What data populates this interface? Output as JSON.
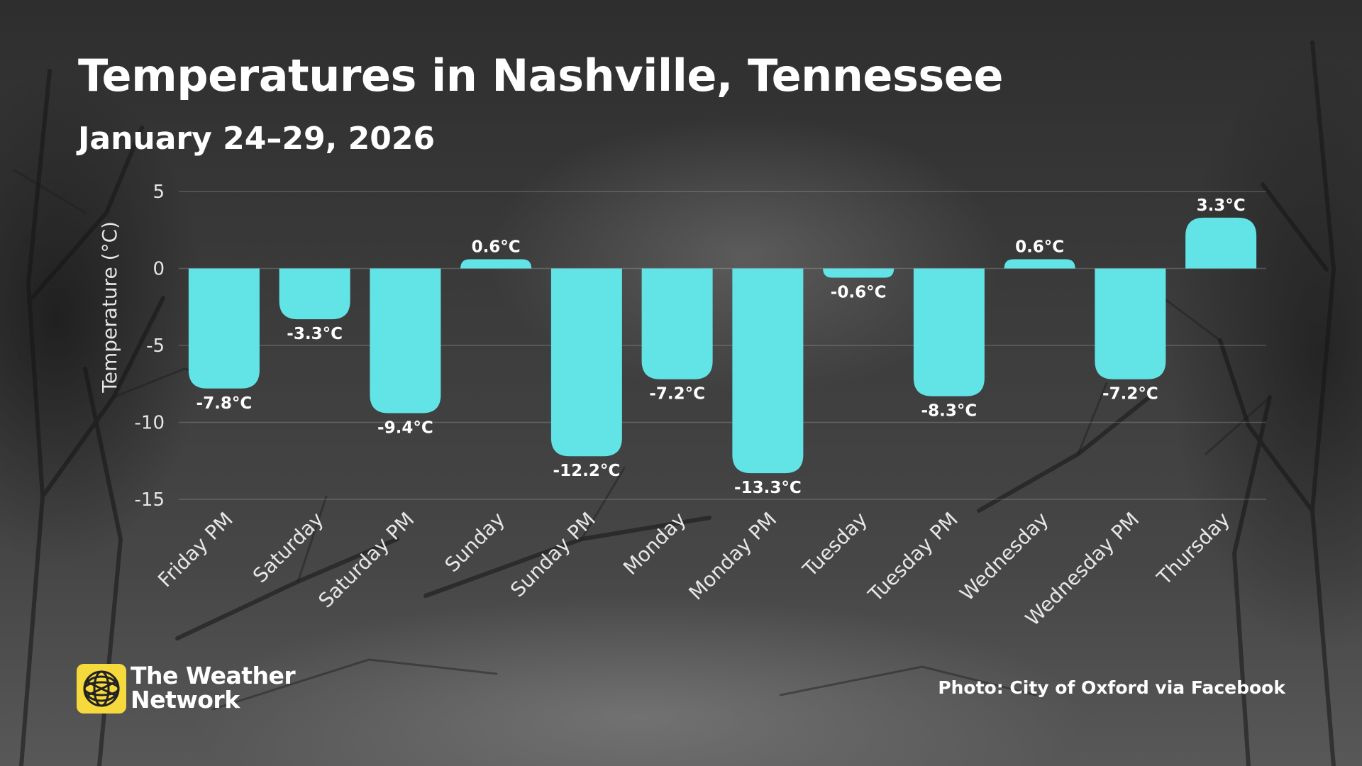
{
  "header": {
    "title": "Temperatures in Nashville, Tennessee",
    "subtitle": "January 24–29, 2026"
  },
  "chart_data": {
    "type": "bar",
    "categories": [
      "Friday PM",
      "Saturday",
      "Saturday PM",
      "Sunday",
      "Sunday PM",
      "Monday",
      "Monday PM",
      "Tuesday",
      "Tuesday PM",
      "Wednesday",
      "Wednesday PM",
      "Thursday"
    ],
    "values": [
      -7.8,
      -3.3,
      -9.4,
      0.6,
      -12.2,
      -7.2,
      -13.3,
      -0.6,
      -8.3,
      0.6,
      -7.2,
      3.3
    ],
    "data_labels": [
      "-7.8°C",
      "-3.3°C",
      "-9.4°C",
      "0.6°C",
      "-12.2°C",
      "-7.2°C",
      "-13.3°C",
      "-0.6°C",
      "-8.3°C",
      "0.6°C",
      "-7.2°C",
      "3.3°C"
    ],
    "ylabel": "Temperature (°C)",
    "xlabel": "",
    "ylim": [
      -15,
      5
    ],
    "yticks": [
      "5",
      "0",
      "-5",
      "-10",
      "-15"
    ],
    "ytick_values": [
      5,
      0,
      -5,
      -10,
      -15
    ],
    "grid": true,
    "bar_color": "#62e3e6"
  },
  "footer": {
    "brand_line1": "The Weather",
    "brand_line2": "Network",
    "credit": "Photo: City of Oxford via Facebook",
    "logo_color": "#f5d93d",
    "logo_icon": "globe-icon"
  }
}
